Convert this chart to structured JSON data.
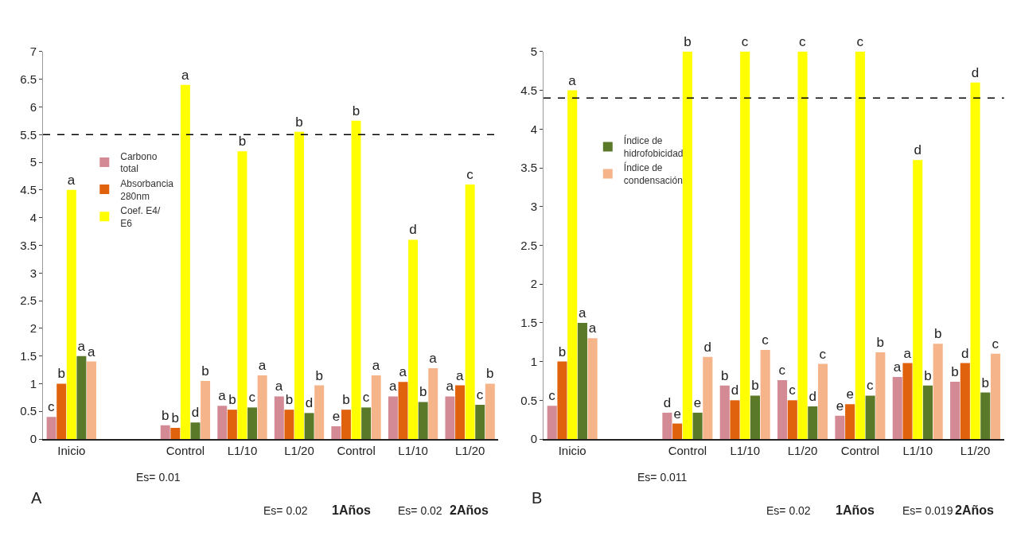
{
  "chart_data": [
    {
      "type": "bar",
      "categories": [
        "Inicio",
        null,
        "Control",
        "L1/10",
        "L1/20",
        "Control",
        "L1/10",
        "L1/20"
      ],
      "ylim": [
        0,
        7
      ],
      "yticks": [
        0,
        0.5,
        1,
        1.5,
        2,
        2.5,
        3,
        3.5,
        4,
        4.5,
        5,
        5.5,
        6,
        6.5,
        7
      ],
      "legend": "top",
      "annotations": [
        "A",
        "Es= 0.01",
        "Es= 0.02",
        "1Años",
        "Es= 0.02",
        "2Años"
      ],
      "ref_lines": [
        {
          "axis": "y",
          "value": 5.5,
          "label": null,
          "color": "#000000",
          "line_style": "dashed"
        }
      ],
      "series": [
        {
          "name": "Carbono total",
          "color": "#d48a94",
          "values": [
            0.4,
            null,
            0.25,
            0.6,
            0.77,
            0.23,
            0.77,
            0.77
          ],
          "value_labels": [
            "c",
            null,
            "b",
            "a",
            "a",
            "e",
            "a",
            "a"
          ]
        },
        {
          "name": "Absorbancia 280nm",
          "color": "#e0620c",
          "values": [
            1.0,
            null,
            0.2,
            0.53,
            0.53,
            0.53,
            1.03,
            0.97
          ],
          "value_labels": [
            "b",
            null,
            "b",
            "b",
            "b",
            "b",
            "a",
            "a"
          ]
        },
        {
          "name": "Coef. E4/ E6",
          "color": "#ffff00",
          "values": [
            4.5,
            null,
            6.4,
            5.2,
            5.55,
            5.75,
            3.6,
            4.6
          ],
          "value_labels": [
            "a",
            null,
            "a",
            "b",
            "b",
            "b",
            "d",
            "c"
          ]
        },
        {
          "color": "#5a7a2a",
          "values": [
            1.5,
            null,
            0.3,
            0.57,
            0.47,
            0.57,
            0.67,
            0.62
          ],
          "value_labels": [
            "a",
            null,
            "d",
            "c",
            "d",
            "c",
            "b",
            "c"
          ]
        },
        {
          "color": "#f5b48a",
          "values": [
            1.4,
            null,
            1.05,
            1.15,
            0.97,
            1.15,
            1.28,
            1.0
          ],
          "value_labels": [
            "a",
            null,
            "b",
            "a",
            "b",
            "a",
            "a",
            "b"
          ]
        }
      ]
    },
    {
      "type": "bar",
      "categories": [
        "Inicio",
        null,
        "Control",
        "L1/10",
        "L1/20",
        "Control",
        "L1/10",
        "L1/20"
      ],
      "ylim": [
        0,
        5
      ],
      "yticks": [
        0,
        0.5,
        1,
        1.5,
        2,
        2.5,
        3,
        3.5,
        4,
        4.5,
        5
      ],
      "legend": "top left",
      "annotations": [
        "B",
        "Es= 0.011",
        "Es= 0.02",
        "1Años",
        "Es= 0.019",
        "2Años"
      ],
      "ref_lines": [
        {
          "axis": "y",
          "value": 4.4,
          "label": null,
          "color": "#000000",
          "line_style": "dashed"
        }
      ],
      "series": [
        {
          "color": "#d48a94",
          "values": [
            0.43,
            null,
            0.34,
            0.69,
            0.76,
            0.3,
            0.8,
            0.74
          ],
          "value_labels": [
            "c",
            null,
            "d",
            "b",
            "c",
            "e",
            "a",
            "b"
          ]
        },
        {
          "color": "#e0620c",
          "values": [
            1.0,
            null,
            0.2,
            0.5,
            0.5,
            0.45,
            0.98,
            0.98
          ],
          "value_labels": [
            "b",
            null,
            "e",
            "d",
            "c",
            "e",
            "a",
            "d"
          ]
        },
        {
          "color": "#ffff00",
          "values": [
            4.5,
            null,
            5.0,
            5.0,
            5.0,
            5.0,
            3.6,
            4.6
          ],
          "value_labels": [
            "a",
            null,
            "b",
            "c",
            "c",
            "c",
            "d",
            "d"
          ]
        },
        {
          "name": "Índice de hidrofobicidad",
          "color": "#5a7a2a",
          "values": [
            1.5,
            null,
            0.34,
            0.56,
            0.42,
            0.56,
            0.69,
            0.6
          ],
          "value_labels": [
            "a",
            null,
            "e",
            "b",
            "d",
            "c",
            "b",
            "b"
          ]
        },
        {
          "name": "Índice de condensación",
          "color": "#f5b48a",
          "values": [
            1.3,
            null,
            1.06,
            1.15,
            0.97,
            1.12,
            1.23,
            1.1
          ],
          "value_labels": [
            "a",
            null,
            "d",
            "c",
            "c",
            "b",
            "b",
            "c"
          ]
        }
      ]
    }
  ]
}
